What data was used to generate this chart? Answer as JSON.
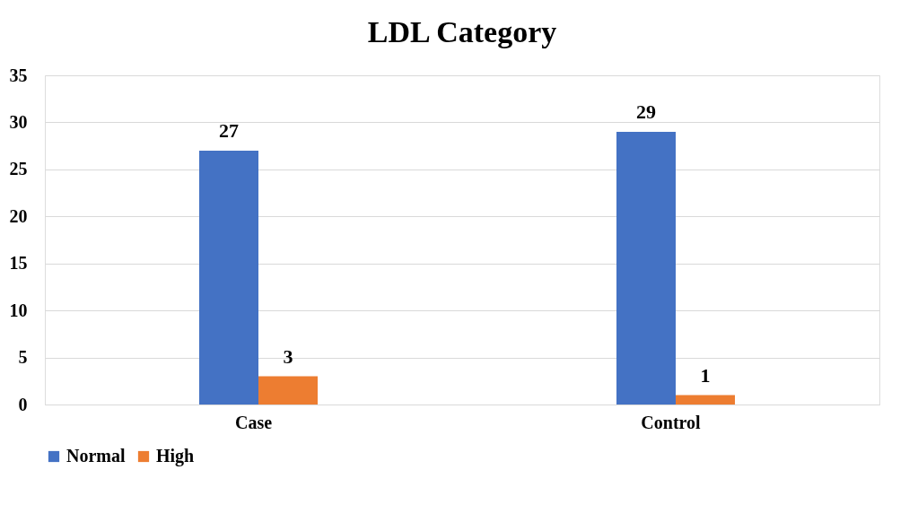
{
  "chart_data": {
    "type": "bar",
    "title": "LDL Category",
    "categories": [
      "Case",
      "Control"
    ],
    "series": [
      {
        "name": "Normal",
        "color": "#4472c4",
        "values": [
          27,
          29
        ]
      },
      {
        "name": "High",
        "color": "#ed7d31",
        "values": [
          3,
          1
        ]
      }
    ],
    "ylim": [
      0,
      35
    ],
    "yticks": [
      0,
      5,
      10,
      15,
      20,
      25,
      30,
      35
    ],
    "grid": "y",
    "legend": "bottom",
    "data_labels": true
  }
}
